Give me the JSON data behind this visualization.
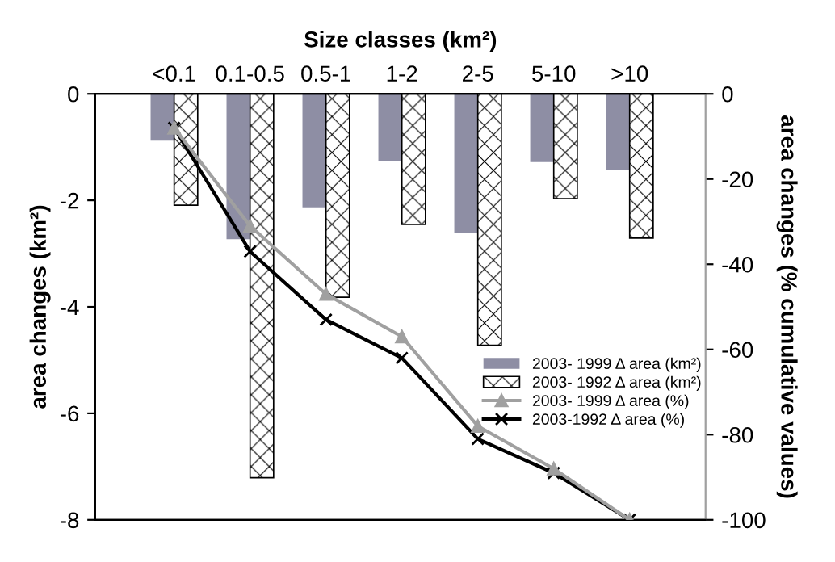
{
  "chart_data": {
    "type": "bar",
    "xlabel": "Size classes (km²)",
    "ylabel": "area changes (km²)",
    "y2label": "area changes (% cumulative values)",
    "categories": [
      "<0.1",
      "0.1-0.5",
      "0.5-1",
      "1-2",
      "2-5",
      "5-10",
      ">10"
    ],
    "series": [
      {
        "name": "2003- 1999 Δ area (km²)",
        "color": "#8e8ea4",
        "values": [
          -0.88,
          -2.73,
          -2.13,
          -1.26,
          -2.61,
          -1.28,
          -1.42
        ]
      },
      {
        "name": "2003- 1992 Δ area (km²)",
        "color": "#000000",
        "marker": "cross",
        "values": [
          -2.09,
          -7.21,
          -3.82,
          -2.45,
          -4.72,
          -1.97,
          -2.71
        ]
      },
      {
        "name": "2003- 1999 Δ area (%)",
        "type": "line",
        "axis": "y2",
        "color": "#a0a0a0",
        "marker": "triangle",
        "values": [
          -8,
          -31,
          -47,
          -57,
          -78,
          -88,
          -100
        ]
      },
      {
        "name": "2003-1992 Δ area (%)",
        "type": "line",
        "axis": "y2",
        "color": "#000000",
        "marker": "cross",
        "values": [
          -8,
          -37,
          -53,
          -62,
          -81,
          -89,
          -100
        ]
      }
    ],
    "ylim": [
      -8,
      0
    ],
    "yticks": [
      -8,
      -6,
      -4,
      -2,
      0
    ],
    "y2lim": [
      -100,
      0
    ],
    "y2ticks": [
      -100,
      -80,
      -60,
      -40,
      -20,
      0
    ],
    "grid": false,
    "legend": "right"
  }
}
